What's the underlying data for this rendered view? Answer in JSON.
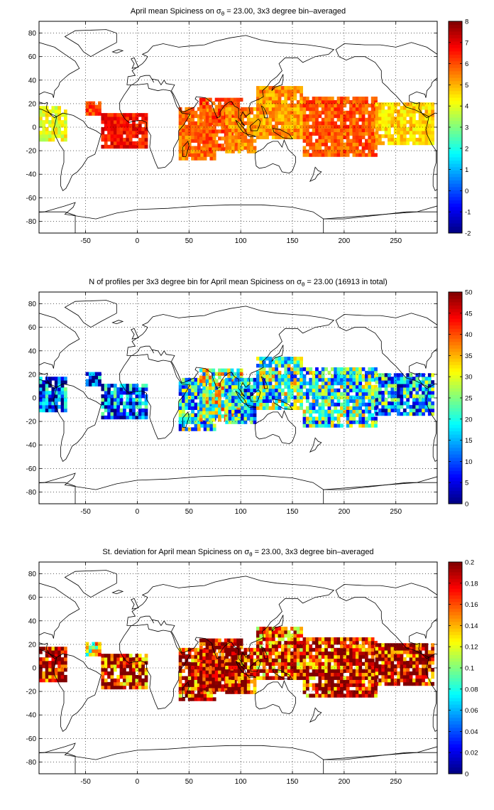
{
  "chart_data": [
    {
      "type": "heatmap",
      "title_parts": [
        "April mean Spiciness on σ",
        "θ",
        " = 23.00, 3x3 degree bin–averaged"
      ],
      "colormap": "jet",
      "xlim": [
        -95,
        290
      ],
      "ylim": [
        -90,
        90
      ],
      "xticks": [
        -50,
        0,
        50,
        100,
        150,
        200,
        250
      ],
      "yticks": [
        -80,
        -60,
        -40,
        -20,
        0,
        20,
        40,
        60,
        80
      ],
      "grid": true,
      "colorbar_range": [
        -2,
        8
      ],
      "colorbar_ticks": [
        -2,
        -1,
        0,
        1,
        2,
        3,
        4,
        5,
        6,
        7,
        8
      ],
      "regions": [
        {
          "x": [
            -95,
            -70
          ],
          "y": [
            -12,
            18
          ],
          "value": 4.0
        },
        {
          "x": [
            -50,
            -35
          ],
          "y": [
            10,
            22
          ],
          "value": 6.0
        },
        {
          "x": [
            -35,
            10
          ],
          "y": [
            -18,
            10
          ],
          "value": 6.6
        },
        {
          "x": [
            40,
            75
          ],
          "y": [
            -28,
            15
          ],
          "value": 5.5
        },
        {
          "x": [
            60,
            100
          ],
          "y": [
            -20,
            25
          ],
          "value": 5.9
        },
        {
          "x": [
            85,
            115
          ],
          "y": [
            -22,
            15
          ],
          "value": 5.3
        },
        {
          "x": [
            115,
            160
          ],
          "y": [
            -10,
            35
          ],
          "value": 5.2
        },
        {
          "x": [
            160,
            230
          ],
          "y": [
            -25,
            25
          ],
          "value": 5.8
        },
        {
          "x": [
            230,
            285
          ],
          "y": [
            -15,
            20
          ],
          "value": 4.6
        }
      ]
    },
    {
      "type": "heatmap",
      "title_parts": [
        "N of profiles per 3x3 degree bin for April mean Spiciness on σ",
        "θ",
        " = 23.00 (16913 in total)"
      ],
      "colormap": "jet",
      "xlim": [
        -95,
        290
      ],
      "ylim": [
        -90,
        90
      ],
      "xticks": [
        -50,
        0,
        50,
        100,
        150,
        200,
        250
      ],
      "yticks": [
        -80,
        -60,
        -40,
        -20,
        0,
        20,
        40,
        60,
        80
      ],
      "grid": true,
      "total_profiles": 16913,
      "colorbar_range": [
        0,
        50
      ],
      "colorbar_ticks": [
        0,
        5,
        10,
        15,
        20,
        25,
        30,
        35,
        40,
        45,
        50
      ],
      "regions": [
        {
          "x": [
            -95,
            -70
          ],
          "y": [
            -12,
            18
          ],
          "value": 8
        },
        {
          "x": [
            -50,
            -35
          ],
          "y": [
            10,
            22
          ],
          "value": 5
        },
        {
          "x": [
            -35,
            10
          ],
          "y": [
            -18,
            10
          ],
          "value": 9
        },
        {
          "x": [
            40,
            75
          ],
          "y": [
            -28,
            15
          ],
          "value": 18
        },
        {
          "x": [
            60,
            100
          ],
          "y": [
            -20,
            25
          ],
          "value": 24
        },
        {
          "x": [
            85,
            115
          ],
          "y": [
            -22,
            15
          ],
          "value": 15
        },
        {
          "x": [
            115,
            160
          ],
          "y": [
            -10,
            35
          ],
          "value": 20
        },
        {
          "x": [
            160,
            230
          ],
          "y": [
            -25,
            25
          ],
          "value": 19
        },
        {
          "x": [
            230,
            285
          ],
          "y": [
            -15,
            20
          ],
          "value": 14
        }
      ]
    },
    {
      "type": "heatmap",
      "title_parts": [
        "St. deviation for April mean Spiciness on σ",
        "θ",
        " = 23.00, 3x3 degree bin–averaged"
      ],
      "colormap": "jet",
      "xlim": [
        -95,
        290
      ],
      "ylim": [
        -90,
        90
      ],
      "xticks": [
        -50,
        0,
        50,
        100,
        150,
        200,
        250
      ],
      "yticks": [
        -80,
        -60,
        -40,
        -20,
        0,
        20,
        40,
        60,
        80
      ],
      "grid": true,
      "colorbar_range": [
        0,
        0.2
      ],
      "colorbar_ticks": [
        0,
        0.02,
        0.04,
        0.06,
        0.08,
        0.1,
        0.12,
        0.14,
        0.16,
        0.18,
        0.2
      ],
      "regions": [
        {
          "x": [
            -95,
            -70
          ],
          "y": [
            -12,
            18
          ],
          "value": 0.18
        },
        {
          "x": [
            -50,
            -35
          ],
          "y": [
            10,
            22
          ],
          "value": 0.12
        },
        {
          "x": [
            -35,
            10
          ],
          "y": [
            -18,
            10
          ],
          "value": 0.17
        },
        {
          "x": [
            40,
            75
          ],
          "y": [
            -28,
            15
          ],
          "value": 0.17
        },
        {
          "x": [
            60,
            100
          ],
          "y": [
            -20,
            25
          ],
          "value": 0.19
        },
        {
          "x": [
            85,
            115
          ],
          "y": [
            -22,
            15
          ],
          "value": 0.18
        },
        {
          "x": [
            115,
            160
          ],
          "y": [
            -10,
            35
          ],
          "value": 0.16
        },
        {
          "x": [
            160,
            230
          ],
          "y": [
            -25,
            25
          ],
          "value": 0.17
        },
        {
          "x": [
            230,
            285
          ],
          "y": [
            -15,
            20
          ],
          "value": 0.18
        }
      ]
    }
  ]
}
